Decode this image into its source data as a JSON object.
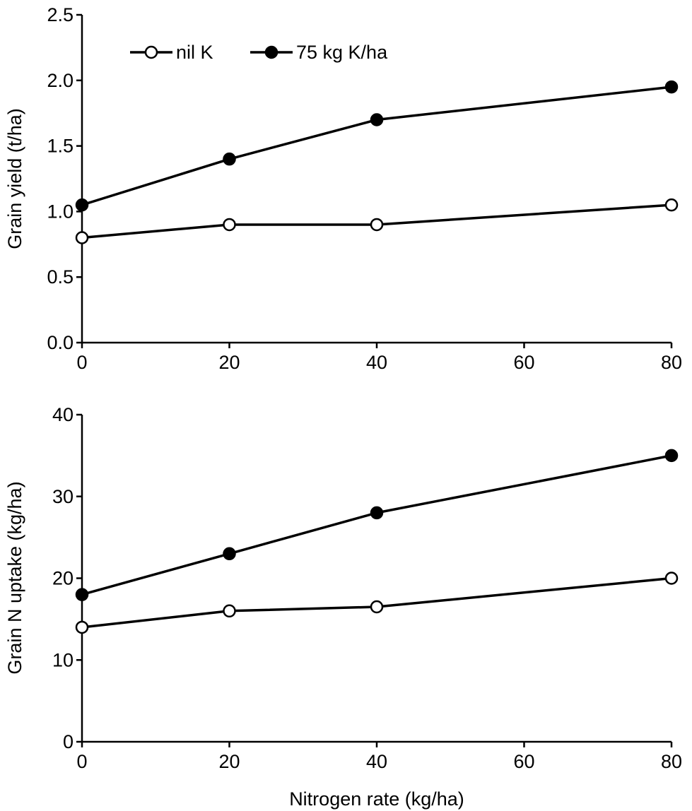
{
  "chart_data": [
    {
      "type": "line",
      "title": "",
      "xlabel": "",
      "ylabel": "Grain yield (t/ha)",
      "x": [
        0,
        20,
        40,
        80
      ],
      "xlim": [
        0,
        80
      ],
      "ylim": [
        0,
        2.5
      ],
      "xticks": [
        0,
        20,
        40,
        60,
        80
      ],
      "xtick_labels": [
        "0",
        "20",
        "40",
        "60",
        "80"
      ],
      "yticks": [
        0,
        0.5,
        1.0,
        1.5,
        2.0,
        2.5
      ],
      "ytick_labels": [
        "0.0",
        "0.5",
        "1.0",
        "1.5",
        "2.0",
        "2.5"
      ],
      "grid": false,
      "legend": "top-left",
      "series": [
        {
          "name": "nil K",
          "marker": "open-circle",
          "values": [
            0.8,
            0.9,
            0.9,
            1.05
          ]
        },
        {
          "name": "75 kg K/ha",
          "marker": "filled-circle",
          "values": [
            1.05,
            1.4,
            1.7,
            1.95
          ]
        }
      ]
    },
    {
      "type": "line",
      "title": "",
      "xlabel": "Nitrogen rate (kg/ha)",
      "ylabel": "Grain N uptake (kg/ha)",
      "x": [
        0,
        20,
        40,
        80
      ],
      "xlim": [
        0,
        80
      ],
      "ylim": [
        0,
        40
      ],
      "xticks": [
        0,
        20,
        40,
        60,
        80
      ],
      "xtick_labels": [
        "0",
        "20",
        "40",
        "60",
        "80"
      ],
      "yticks": [
        0,
        10,
        20,
        30,
        40
      ],
      "ytick_labels": [
        "0",
        "10",
        "20",
        "30",
        "40"
      ],
      "grid": false,
      "legend": "none",
      "series": [
        {
          "name": "nil K",
          "marker": "open-circle",
          "values": [
            14,
            16,
            16.5,
            20
          ]
        },
        {
          "name": "75 kg K/ha",
          "marker": "filled-circle",
          "values": [
            18,
            23,
            28,
            35
          ]
        }
      ]
    }
  ]
}
